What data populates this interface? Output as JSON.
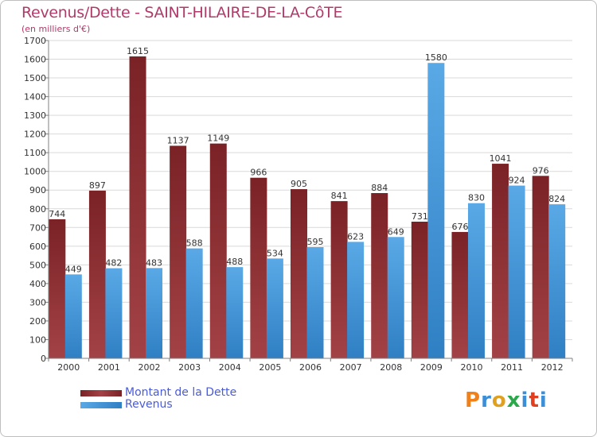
{
  "page": {
    "title": "Revenus/Dette - SAINT-HILAIRE-DE-LA-CôTE",
    "subtitle": "(en milliers d'€)",
    "logo_text": "Proxiti"
  },
  "colors": {
    "dette_top": "#7a2226",
    "dette_bottom": "#a34246",
    "revenus_top": "#5aa9e6",
    "revenus_bottom": "#2f7fc4",
    "title": "#b03a6a",
    "legend_text": "#4a5bd8",
    "grid": "#d9d9d9",
    "axis": "#808080",
    "logo": [
      "#f0801a",
      "#3a8fd8",
      "#e0a020",
      "#2aa84a",
      "#3a8fd8",
      "#e04020",
      "#3a8fd8"
    ]
  },
  "chart_data": {
    "type": "bar",
    "categories": [
      "2000",
      "2001",
      "2002",
      "2003",
      "2004",
      "2005",
      "2006",
      "2007",
      "2008",
      "2009",
      "2010",
      "2011",
      "2012"
    ],
    "series": [
      {
        "name": "Montant de la Dette",
        "values": [
          744,
          897,
          1615,
          1137,
          1149,
          966,
          905,
          841,
          884,
          731,
          676,
          1041,
          976
        ]
      },
      {
        "name": "Revenus",
        "values": [
          449,
          482,
          483,
          588,
          488,
          534,
          595,
          623,
          649,
          1580,
          830,
          924,
          824
        ]
      }
    ],
    "ylim": [
      0,
      1700
    ],
    "yticks": [
      0,
      100,
      200,
      300,
      400,
      500,
      600,
      700,
      800,
      900,
      1000,
      1100,
      1200,
      1300,
      1400,
      1500,
      1600,
      1700
    ],
    "grid": true,
    "legend_position": "bottom-left",
    "data_labels": true
  }
}
